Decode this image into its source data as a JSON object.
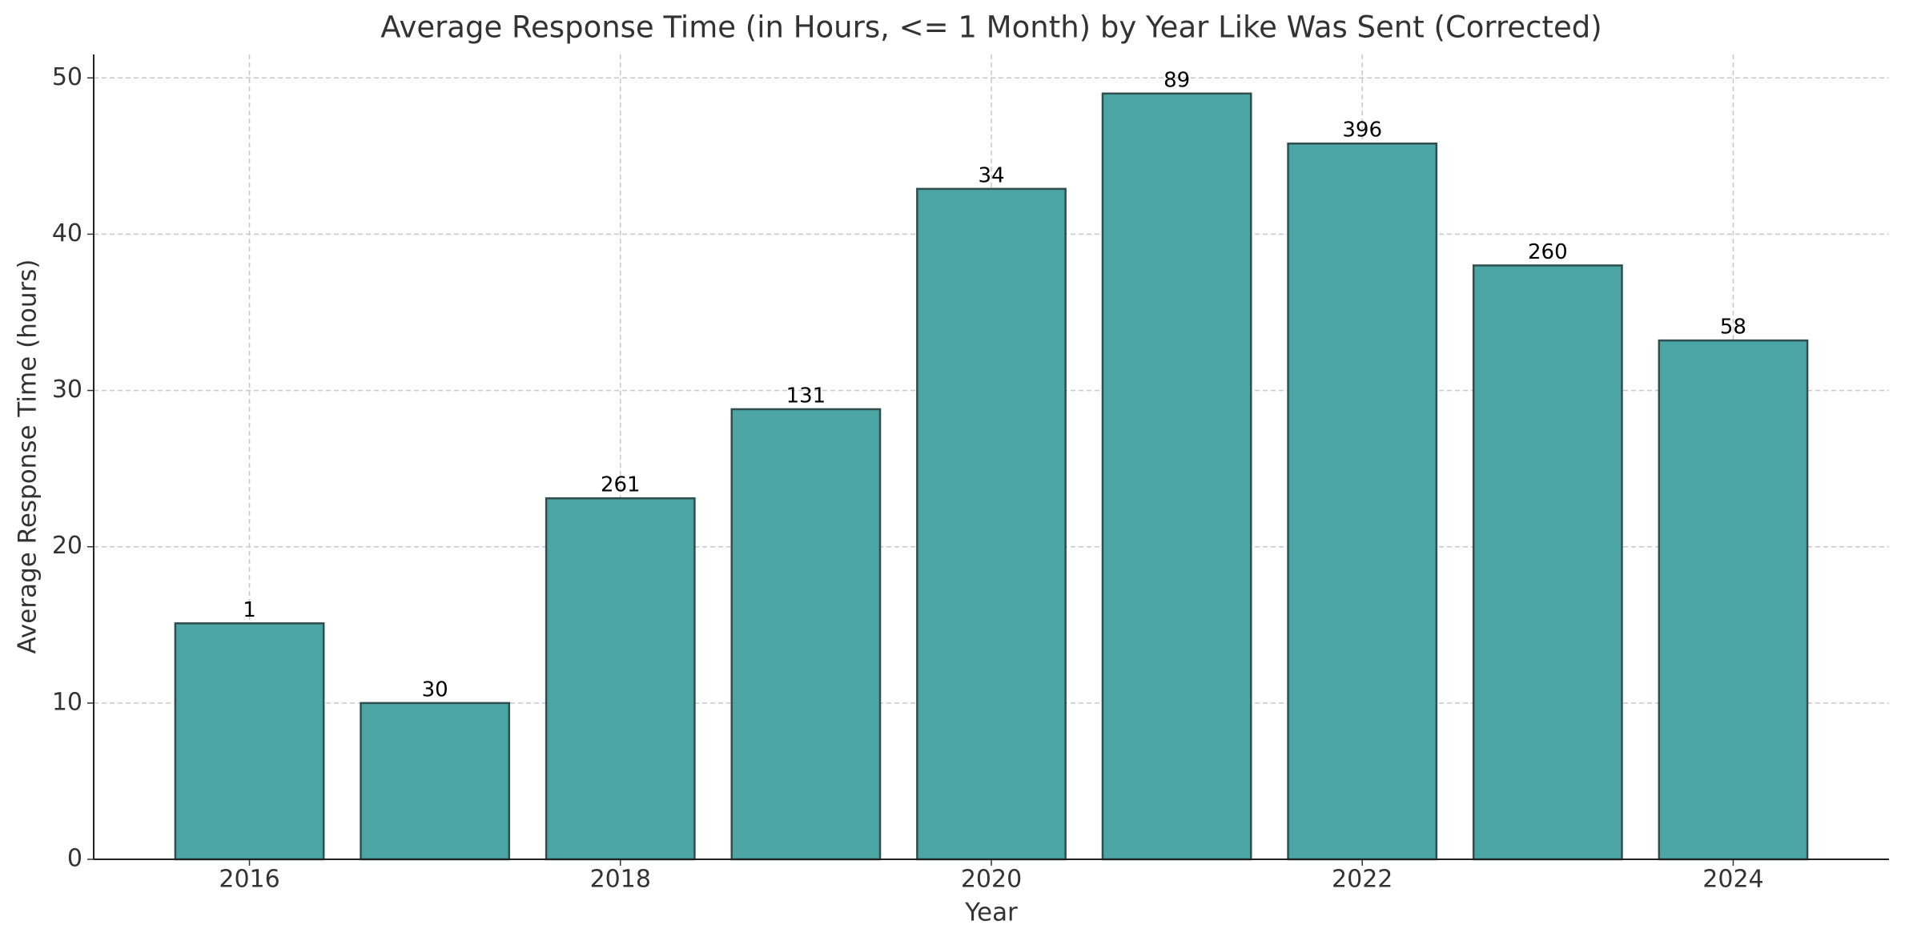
{
  "chart_data": {
    "type": "bar",
    "title": "Average Response Time (in Hours, <= 1 Month) by Year Like Was Sent (Corrected)",
    "x_label": "Year",
    "y_label": "Average Response Time (hours)",
    "x": [
      2016,
      2017,
      2018,
      2019,
      2020,
      2021,
      2022,
      2023,
      2024
    ],
    "values": [
      15.1,
      10.0,
      23.1,
      28.8,
      42.9,
      49.0,
      45.8,
      38.0,
      33.2
    ],
    "bar_labels": [
      1,
      30,
      261,
      131,
      34,
      89,
      396,
      260,
      58
    ],
    "color": "#4ca5a5",
    "edge_color": "#2f4f4f",
    "xlim": [
      2015.16,
      2024.84
    ],
    "xticks": [
      2016,
      2018,
      2020,
      2022,
      2024
    ],
    "ylim": [
      0,
      51.5
    ],
    "yticks": [
      0,
      10,
      20,
      30,
      40,
      50
    ],
    "grid": true
  }
}
